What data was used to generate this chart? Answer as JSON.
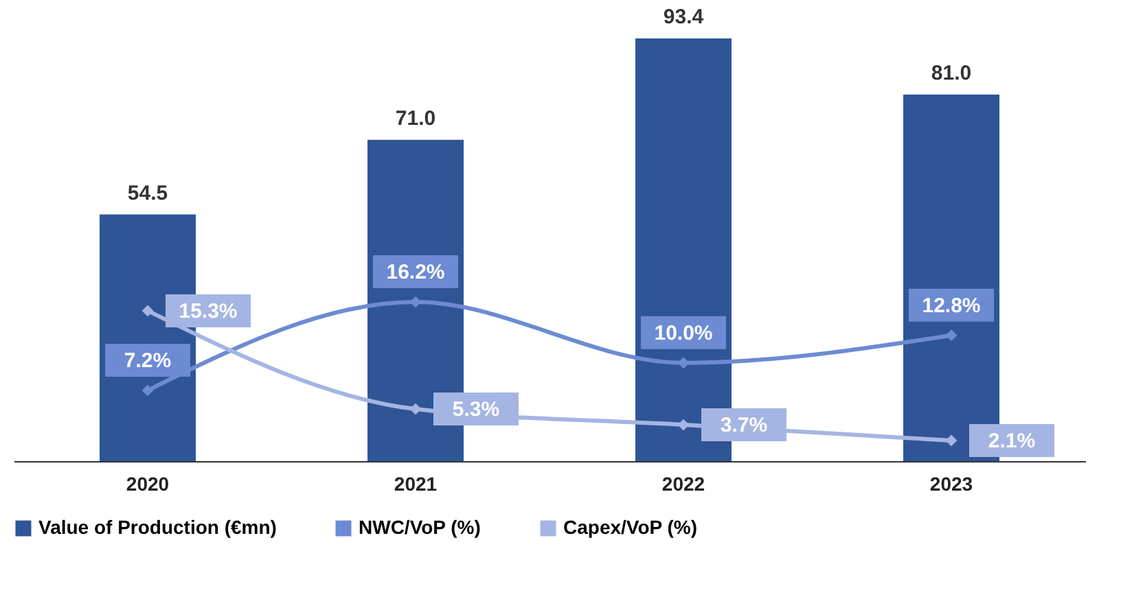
{
  "chart_data": {
    "type": "bar",
    "categories": [
      "2020",
      "2021",
      "2022",
      "2023"
    ],
    "legend": "bottom",
    "marker": "diamond",
    "line_style": "solid",
    "grid": false,
    "series": [
      {
        "name": "Value of Production (€mn)",
        "color": "#2f5597",
        "values": [
          54.5,
          71.0,
          93.4,
          81.0
        ],
        "value_labels": [
          "54.5",
          "71.0",
          "93.4",
          "81.0"
        ]
      },
      {
        "name": "NWC/VoP (%)",
        "type": "line",
        "axis": "y2",
        "color": "#6d8bd3",
        "values": [
          7.2,
          16.2,
          10.0,
          12.8
        ],
        "value_labels": [
          "7.2%",
          "16.2%",
          "10.0%",
          "12.8%"
        ]
      },
      {
        "name": "Capex/VoP (%)",
        "type": "line",
        "axis": "y2",
        "color": "#a5b5e3",
        "values": [
          15.3,
          5.3,
          3.7,
          2.1
        ],
        "value_labels": [
          "15.3%",
          "5.3%",
          "3.7%",
          "2.1%"
        ]
      }
    ]
  }
}
